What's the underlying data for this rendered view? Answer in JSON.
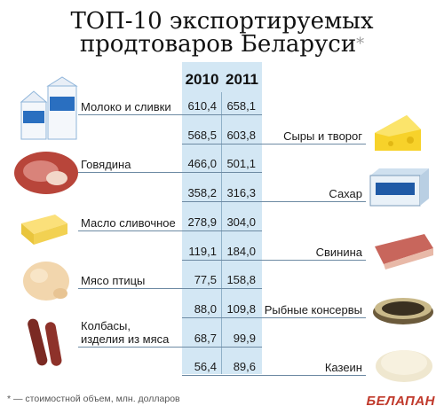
{
  "title_line1": "ТОП-10 экспортируемых",
  "title_line2": "продтоваров Беларуси",
  "title_star": "*",
  "footnote": "* — стоимостной объем, млн. долларов",
  "logo": "БЕЛАПАН",
  "colors": {
    "band": "#d3e7f4",
    "line": "#6d8aa3",
    "logo": "#c0392b"
  },
  "chart_data": {
    "type": "table",
    "columns": [
      "2010",
      "2011"
    ],
    "rows": [
      {
        "label": "Молоко и сливки",
        "side": "left",
        "values": [
          "610,4",
          "658,1"
        ]
      },
      {
        "label": "Сыры и творог",
        "side": "right",
        "values": [
          "568,5",
          "603,8"
        ]
      },
      {
        "label": "Говядина",
        "side": "left",
        "values": [
          "466,0",
          "501,1"
        ]
      },
      {
        "label": "Сахар",
        "side": "right",
        "values": [
          "358,2",
          "316,3"
        ]
      },
      {
        "label": "Масло сливочное",
        "side": "left",
        "values": [
          "278,9",
          "304,0"
        ]
      },
      {
        "label": "Свинина",
        "side": "right",
        "values": [
          "119,1",
          "184,0"
        ]
      },
      {
        "label": "Мясо птицы",
        "side": "left",
        "values": [
          "77,5",
          "158,8"
        ]
      },
      {
        "label": "Рыбные консервы",
        "side": "right",
        "values": [
          "88,0",
          "109,8"
        ]
      },
      {
        "label": "Колбасы, изделия из мяса",
        "label_lines": [
          "Колбасы,",
          "изделия из мяса"
        ],
        "side": "left",
        "values": [
          "68,7",
          "99,9"
        ]
      },
      {
        "label": "Казеин",
        "side": "right",
        "values": [
          "56,4",
          "89,6"
        ]
      }
    ]
  }
}
